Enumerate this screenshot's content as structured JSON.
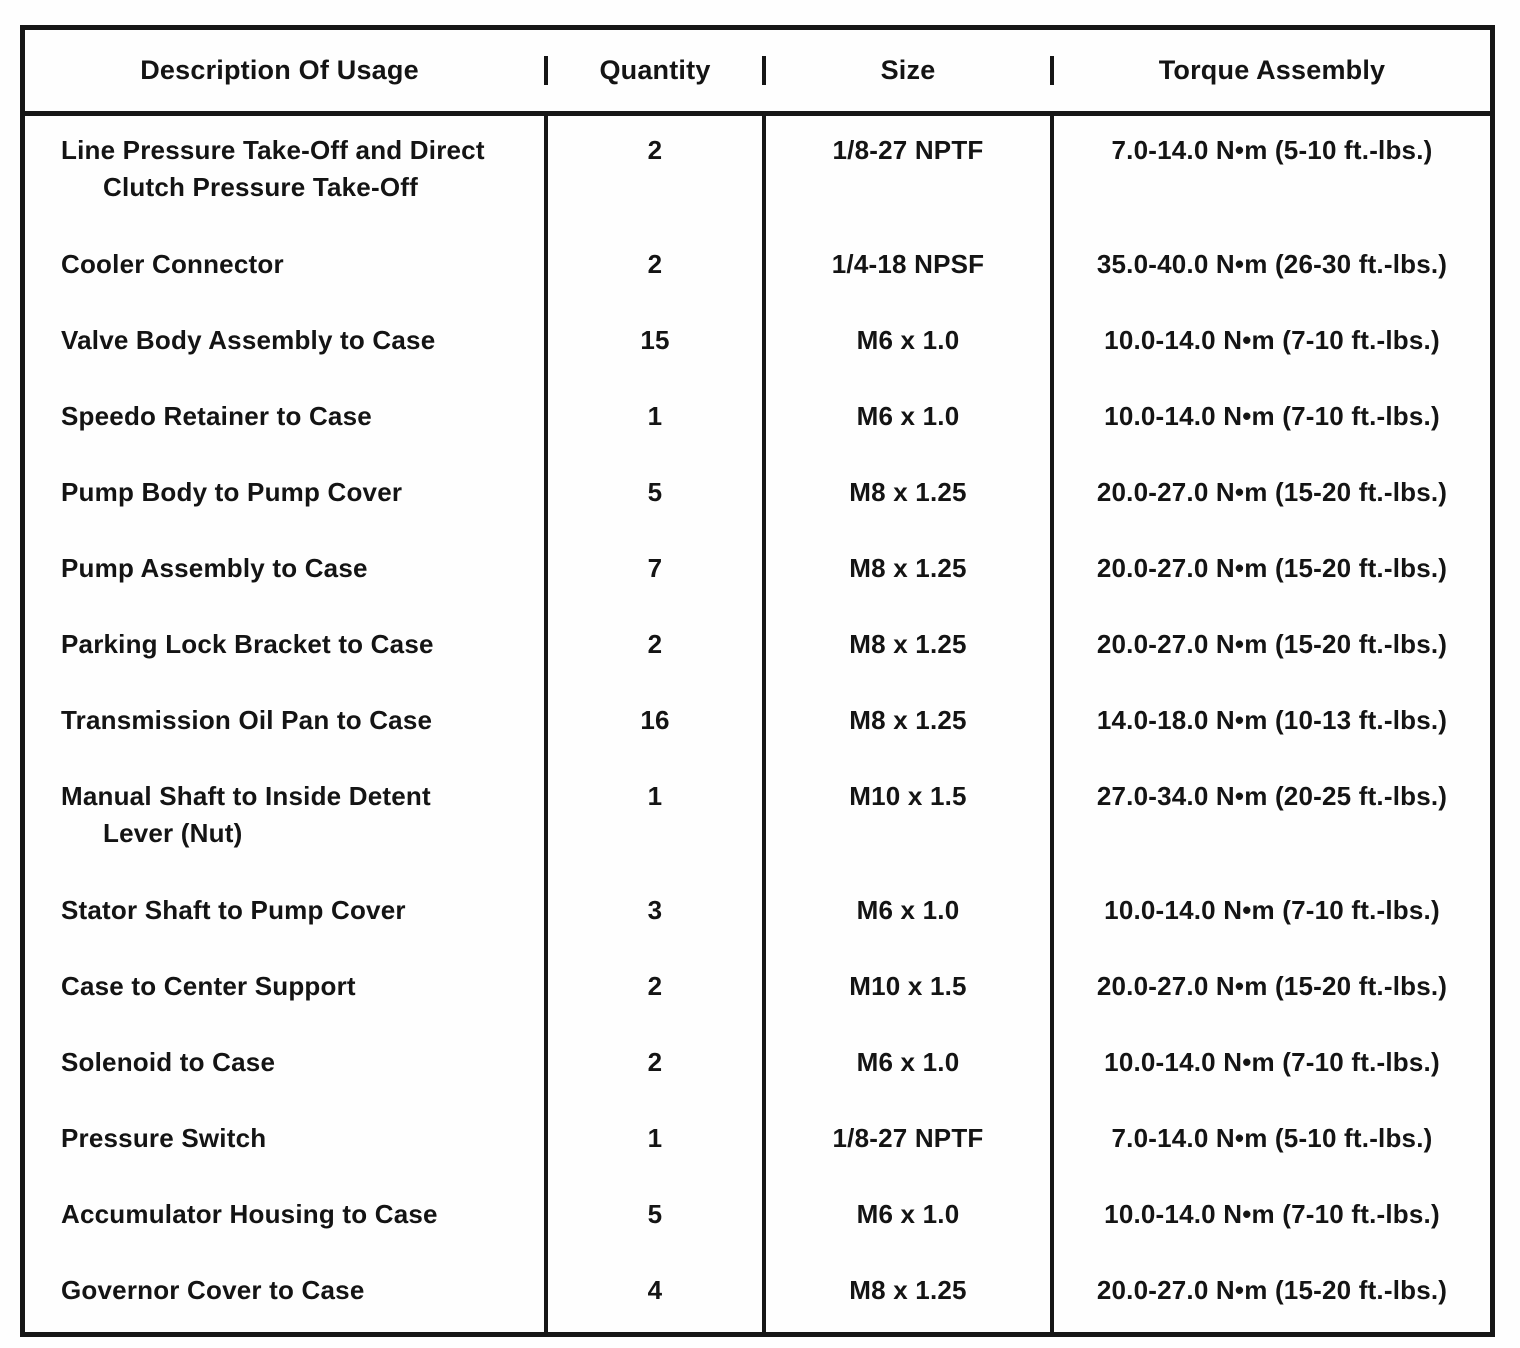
{
  "colors": {
    "ink": "#141414",
    "paper": "#fefefe",
    "rule": "#161616"
  },
  "table": {
    "headers": [
      "Description Of Usage",
      "Quantity",
      "Size",
      "Torque Assembly"
    ],
    "rows": [
      {
        "desc1": "Line Pressure Take-Off and Direct",
        "desc2": "Clutch Pressure Take-Off",
        "qty": "2",
        "size": "1/8-27 NPTF",
        "torque": "7.0-14.0 N•m (5-10 ft.-lbs.)"
      },
      {
        "desc1": "Cooler Connector",
        "desc2": "",
        "qty": "2",
        "size": "1/4-18 NPSF",
        "torque": "35.0-40.0 N•m (26-30 ft.-lbs.)"
      },
      {
        "desc1": "Valve Body Assembly to Case",
        "desc2": "",
        "qty": "15",
        "size": "M6 x 1.0",
        "torque": "10.0-14.0 N•m (7-10 ft.-lbs.)"
      },
      {
        "desc1": "Speedo Retainer to Case",
        "desc2": "",
        "qty": "1",
        "size": "M6 x 1.0",
        "torque": "10.0-14.0 N•m (7-10 ft.-lbs.)"
      },
      {
        "desc1": "Pump Body to Pump Cover",
        "desc2": "",
        "qty": "5",
        "size": "M8 x 1.25",
        "torque": "20.0-27.0 N•m (15-20 ft.-lbs.)"
      },
      {
        "desc1": "Pump Assembly to Case",
        "desc2": "",
        "qty": "7",
        "size": "M8 x 1.25",
        "torque": "20.0-27.0 N•m (15-20 ft.-lbs.)"
      },
      {
        "desc1": "Parking Lock Bracket to Case",
        "desc2": "",
        "qty": "2",
        "size": "M8 x 1.25",
        "torque": "20.0-27.0 N•m (15-20 ft.-lbs.)"
      },
      {
        "desc1": "Transmission Oil Pan to Case",
        "desc2": "",
        "qty": "16",
        "size": "M8 x 1.25",
        "torque": "14.0-18.0 N•m (10-13 ft.-lbs.)"
      },
      {
        "desc1": "Manual Shaft to Inside Detent",
        "desc2": "Lever (Nut)",
        "qty": "1",
        "size": "M10 x 1.5",
        "torque": "27.0-34.0 N•m (20-25 ft.-lbs.)"
      },
      {
        "desc1": "Stator Shaft to Pump Cover",
        "desc2": "",
        "qty": "3",
        "size": "M6 x 1.0",
        "torque": "10.0-14.0 N•m (7-10 ft.-lbs.)"
      },
      {
        "desc1": "Case to Center Support",
        "desc2": "",
        "qty": "2",
        "size": "M10 x 1.5",
        "torque": "20.0-27.0 N•m (15-20 ft.-lbs.)"
      },
      {
        "desc1": "Solenoid to Case",
        "desc2": "",
        "qty": "2",
        "size": "M6 x 1.0",
        "torque": "10.0-14.0 N•m (7-10 ft.-lbs.)"
      },
      {
        "desc1": "Pressure Switch",
        "desc2": "",
        "qty": "1",
        "size": "1/8-27 NPTF",
        "torque": "7.0-14.0 N•m (5-10 ft.-lbs.)"
      },
      {
        "desc1": "Accumulator Housing to Case",
        "desc2": "",
        "qty": "5",
        "size": "M6 x 1.0",
        "torque": "10.0-14.0 N•m (7-10 ft.-lbs.)"
      },
      {
        "desc1": "Governor Cover to Case",
        "desc2": "",
        "qty": "4",
        "size": "M8 x 1.25",
        "torque": "20.0-27.0 N•m (15-20 ft.-lbs.)"
      }
    ]
  }
}
